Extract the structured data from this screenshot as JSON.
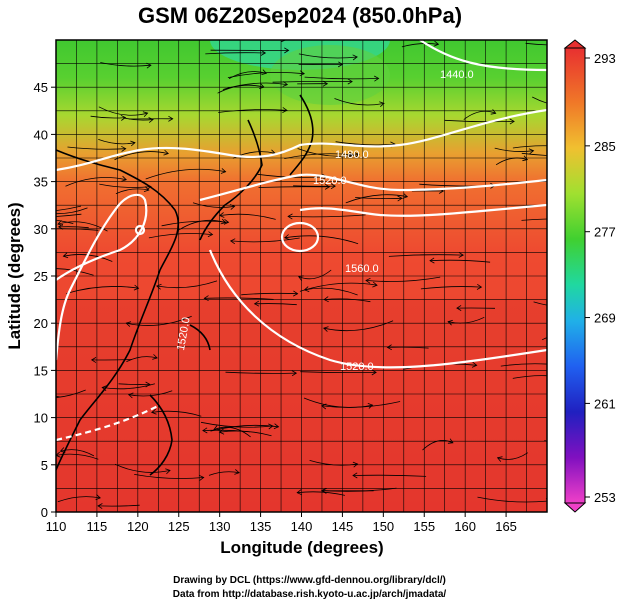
{
  "title": "GSM 06Z20Sep2024 (850.0hPa)",
  "xlabel": "Longitude (degrees)",
  "ylabel": "Latitude (degrees)",
  "x_ticks": [
    "110",
    "115",
    "120",
    "125",
    "130",
    "135",
    "140",
    "145",
    "150",
    "155",
    "160",
    "165"
  ],
  "y_ticks": [
    "0",
    "5",
    "10",
    "15",
    "20",
    "25",
    "30",
    "35",
    "40",
    "45"
  ],
  "colorbar": {
    "ticks": [
      "293",
      "285",
      "277",
      "269",
      "261",
      "253"
    ],
    "colors": [
      "#e83030",
      "#f07828",
      "#f0c030",
      "#b8e030",
      "#50d030",
      "#20d888",
      "#20c0e0",
      "#2080f0",
      "#2030d0",
      "#6010c0",
      "#c010c0",
      "#f040c0"
    ]
  },
  "contours": [
    {
      "label": "1440.0"
    },
    {
      "label": "1480.0"
    },
    {
      "label": "1520.0"
    },
    {
      "label": "1560.0"
    },
    {
      "label": "1520.0"
    },
    {
      "label": "1520.0"
    }
  ],
  "credits": [
    "Drawing by DCL (https://www.gfd-dennou.org/library/dcl/)",
    "Data from http://database.rish.kyoto-u.ac.jp/arch/jmadata/"
  ]
}
